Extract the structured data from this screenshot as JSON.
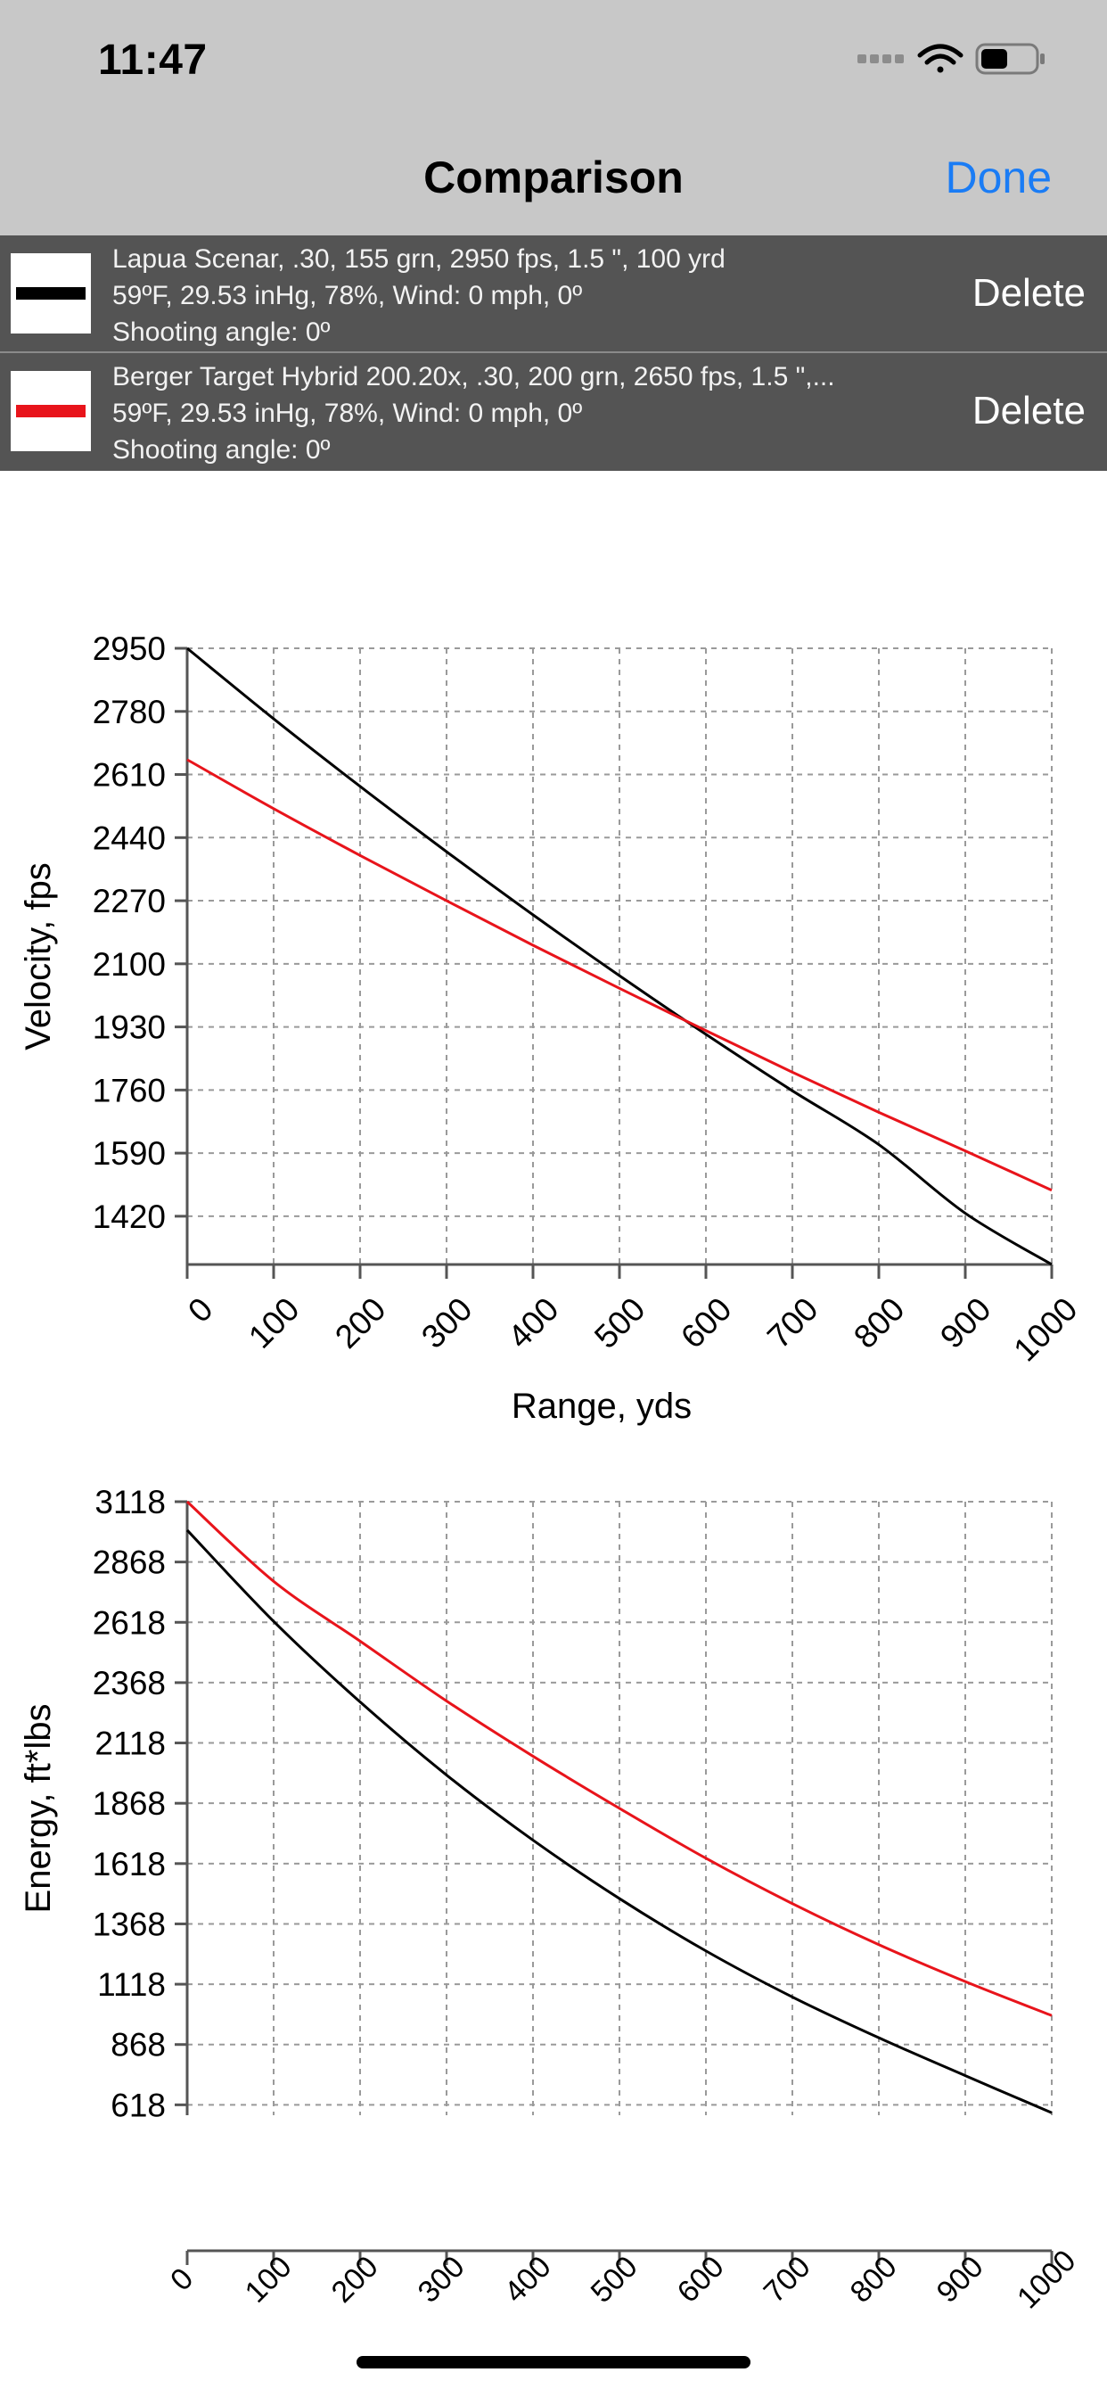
{
  "status_bar": {
    "time": "11:47",
    "battery_level": 0.5,
    "signal_icon": "cellular-dots-icon",
    "wifi_icon": "wifi-icon",
    "battery_icon": "battery-icon"
  },
  "nav": {
    "title": "Comparison",
    "done_label": "Done"
  },
  "comparisons": [
    {
      "color": "#000000",
      "line1": "Lapua Scenar, .30, 155 grn, 2950 fps, 1.5 \", 100 yrd",
      "line2": "59ºF, 29.53 inHg, 78%, Wind: 0 mph, 0º",
      "line3": "Shooting angle: 0º",
      "delete_label": "Delete"
    },
    {
      "color": "#e8141b",
      "line1": "Berger Target Hybrid 200.20x, .30, 200 grn, 2650 fps, 1.5 \",...",
      "line2": "59ºF, 29.53 inHg, 78%, Wind: 0 mph, 0º",
      "line3": "Shooting angle: 0º",
      "delete_label": "Delete"
    }
  ],
  "chart_data": [
    {
      "type": "line",
      "xlabel": "Range, yds",
      "ylabel": "Velocity, fps",
      "x": [
        0,
        100,
        200,
        300,
        400,
        500,
        600,
        700,
        800,
        900,
        1000
      ],
      "x_ticks": [
        "0",
        "100",
        "200",
        "300",
        "400",
        "500",
        "600",
        "700",
        "800",
        "900",
        "1000"
      ],
      "y_ticks": [
        "2950",
        "2780",
        "2610",
        "2440",
        "2270",
        "2100",
        "1930",
        "1760",
        "1590",
        "1420"
      ],
      "xlim": [
        0,
        1000
      ],
      "ylim": [
        1290,
        2950
      ],
      "grid": true,
      "series": [
        {
          "color": "#000000",
          "values": [
            2950,
            2760,
            2578,
            2402,
            2232,
            2068,
            1910,
            1758,
            1613,
            1428,
            1290
          ]
        },
        {
          "color": "#e8141b",
          "values": [
            2650,
            2518,
            2392,
            2270,
            2150,
            2034,
            1920,
            1808,
            1700,
            1596,
            1490
          ]
        }
      ]
    },
    {
      "type": "line",
      "xlabel": "",
      "ylabel": "Energy, ft*lbs",
      "x": [
        0,
        100,
        200,
        300,
        400,
        500,
        600,
        700,
        800,
        900,
        1000
      ],
      "x_ticks": [
        "0",
        "100",
        "200",
        "300",
        "400",
        "500",
        "600",
        "700",
        "800",
        "900",
        "1000"
      ],
      "y_ticks": [
        "3118",
        "2868",
        "2618",
        "2368",
        "2118",
        "1868",
        "1618",
        "1368",
        "1118",
        "868",
        "618"
      ],
      "xlim": [
        0,
        1000
      ],
      "ylim": [
        575,
        3118
      ],
      "grid": true,
      "series": [
        {
          "color": "#000000",
          "values": [
            3000,
            2622,
            2288,
            1985,
            1715,
            1473,
            1256,
            1065,
            896,
            739,
            585
          ]
        },
        {
          "color": "#e8141b",
          "values": [
            3118,
            2788,
            2540,
            2292,
            2063,
            1847,
            1640,
            1452,
            1282,
            1129,
            988
          ]
        }
      ]
    }
  ]
}
